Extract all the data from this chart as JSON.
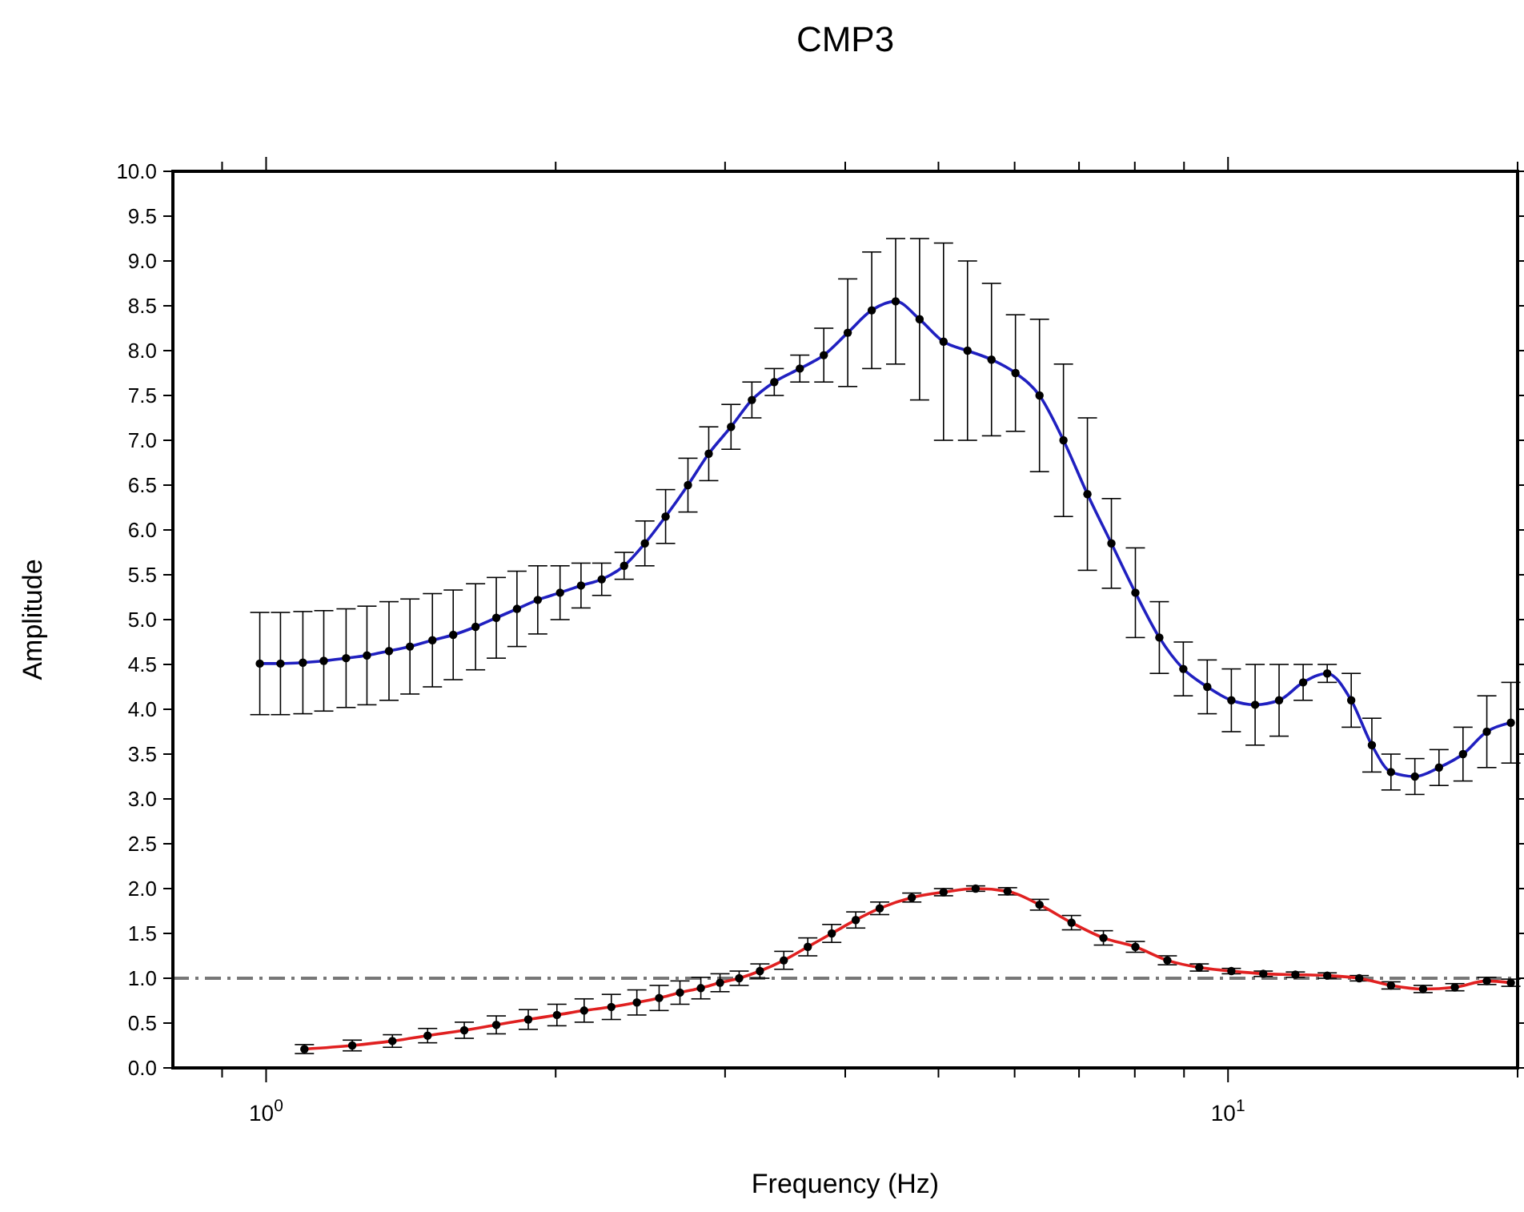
{
  "chart_data": {
    "type": "line",
    "title": "CMP3",
    "xlabel": "Frequency (Hz)",
    "ylabel": "Amplitude",
    "log": "x",
    "grid": false,
    "marker": "circle",
    "line_style": "solid",
    "xlim": [
      0.8,
      20
    ],
    "xticks": [
      {
        "value": 0.9,
        "label": null
      },
      {
        "value": 1,
        "label": "10$^{0}$"
      },
      {
        "value": 2,
        "label": null
      },
      {
        "value": 3,
        "label": null
      },
      {
        "value": 4,
        "label": null
      },
      {
        "value": 5,
        "label": null
      },
      {
        "value": 6,
        "label": null
      },
      {
        "value": 7,
        "label": null
      },
      {
        "value": 8,
        "label": null
      },
      {
        "value": 9,
        "label": null
      },
      {
        "value": 10,
        "label": "10$^{1}$"
      },
      {
        "value": 20,
        "label": null
      }
    ],
    "ylim": [
      0,
      10
    ],
    "yticks": [
      {
        "value": 0,
        "label": "0.0"
      },
      {
        "value": 0.5,
        "label": "0.5"
      },
      {
        "value": 1,
        "label": "1.0"
      },
      {
        "value": 1.5,
        "label": "1.5"
      },
      {
        "value": 2,
        "label": "2.0"
      },
      {
        "value": 2.5,
        "label": "2.5"
      },
      {
        "value": 3,
        "label": "3.0"
      },
      {
        "value": 3.5,
        "label": "3.5"
      },
      {
        "value": 4,
        "label": "4.0"
      },
      {
        "value": 4.5,
        "label": "4.5"
      },
      {
        "value": 5,
        "label": "5.0"
      },
      {
        "value": 5.5,
        "label": "5.5"
      },
      {
        "value": 6,
        "label": "6.0"
      },
      {
        "value": 6.5,
        "label": "6.5"
      },
      {
        "value": 7,
        "label": "7.0"
      },
      {
        "value": 7.5,
        "label": "7.5"
      },
      {
        "value": 8,
        "label": "8.0"
      },
      {
        "value": 8.5,
        "label": "8.5"
      },
      {
        "value": 9,
        "label": "9.0"
      },
      {
        "value": 9.5,
        "label": "9.5"
      },
      {
        "value": 10,
        "label": "10.0"
      }
    ],
    "ref_lines": [
      {
        "axis": "y",
        "value": 1,
        "color": "#777777",
        "line_style": "dashed"
      }
    ],
    "series": [
      {
        "color": "#2020c0",
        "x": [
          0.985,
          1.035,
          1.092,
          1.148,
          1.211,
          1.273,
          1.342,
          1.411,
          1.489,
          1.565,
          1.651,
          1.735,
          1.823,
          1.916,
          2.021,
          2.125,
          2.233,
          2.356,
          2.476,
          2.602,
          2.745,
          2.885,
          3.043,
          3.199,
          3.375,
          3.588,
          3.8,
          4.024,
          4.262,
          4.513,
          4.779,
          5.061,
          5.36,
          5.677,
          6.012,
          6.368,
          6.744,
          7.142,
          7.564,
          8.011,
          8.484,
          8.985,
          9.515,
          10.08,
          10.67,
          11.3,
          11.97,
          12.68,
          13.43,
          14.11,
          14.77,
          15.64,
          16.57,
          17.55,
          18.58,
          19.68
        ],
        "values": [
          4.51,
          4.51,
          4.52,
          4.54,
          4.57,
          4.6,
          4.65,
          4.7,
          4.77,
          4.83,
          4.92,
          5.02,
          5.12,
          5.22,
          5.3,
          5.38,
          5.45,
          5.6,
          5.85,
          6.15,
          6.5,
          6.85,
          7.15,
          7.45,
          7.65,
          7.8,
          7.95,
          8.2,
          8.45,
          8.55,
          8.35,
          8.1,
          8.0,
          7.9,
          7.75,
          7.5,
          7.0,
          6.4,
          5.85,
          5.3,
          4.8,
          4.45,
          4.25,
          4.1,
          4.05,
          4.1,
          4.3,
          4.4,
          4.1,
          3.6,
          3.3,
          3.25,
          3.35,
          3.5,
          3.75,
          3.85
        ],
        "errors": [
          0.57,
          0.57,
          0.57,
          0.56,
          0.55,
          0.55,
          0.55,
          0.53,
          0.52,
          0.5,
          0.48,
          0.45,
          0.42,
          0.38,
          0.3,
          0.25,
          0.18,
          0.15,
          0.25,
          0.3,
          0.3,
          0.3,
          0.25,
          0.2,
          0.15,
          0.15,
          0.3,
          0.6,
          0.65,
          0.7,
          0.9,
          1.1,
          1.0,
          0.85,
          0.65,
          0.85,
          0.85,
          0.85,
          0.5,
          0.5,
          0.4,
          0.3,
          0.3,
          0.35,
          0.45,
          0.4,
          0.2,
          0.1,
          0.3,
          0.3,
          0.2,
          0.2,
          0.2,
          0.3,
          0.4,
          0.45
        ]
      },
      {
        "color": "#e02020",
        "x": [
          1.096,
          1.229,
          1.353,
          1.472,
          1.607,
          1.735,
          1.873,
          2.006,
          2.141,
          2.285,
          2.429,
          2.562,
          2.693,
          2.831,
          2.964,
          3.103,
          3.261,
          3.453,
          3.657,
          3.873,
          4.102,
          4.344,
          4.691,
          5.061,
          5.465,
          5.899,
          6.368,
          6.875,
          7.421,
          8.011,
          8.648,
          9.335,
          10.08,
          10.88,
          11.75,
          12.68,
          13.69,
          14.77,
          15.95,
          17.21,
          18.58,
          19.68
        ],
        "values": [
          0.21,
          0.25,
          0.3,
          0.36,
          0.42,
          0.48,
          0.54,
          0.59,
          0.64,
          0.68,
          0.73,
          0.78,
          0.84,
          0.89,
          0.95,
          1.0,
          1.08,
          1.2,
          1.35,
          1.5,
          1.65,
          1.78,
          1.9,
          1.96,
          2.0,
          1.97,
          1.82,
          1.62,
          1.45,
          1.35,
          1.2,
          1.12,
          1.08,
          1.05,
          1.04,
          1.03,
          1.0,
          0.92,
          0.88,
          0.9,
          0.97,
          0.95
        ],
        "errors": [
          0.05,
          0.06,
          0.07,
          0.08,
          0.09,
          0.1,
          0.11,
          0.12,
          0.13,
          0.14,
          0.14,
          0.14,
          0.13,
          0.12,
          0.1,
          0.08,
          0.08,
          0.1,
          0.1,
          0.1,
          0.09,
          0.07,
          0.05,
          0.04,
          0.03,
          0.04,
          0.06,
          0.08,
          0.08,
          0.06,
          0.05,
          0.04,
          0.03,
          0.03,
          0.03,
          0.03,
          0.03,
          0.04,
          0.04,
          0.04,
          0.04,
          0.04
        ]
      }
    ]
  }
}
